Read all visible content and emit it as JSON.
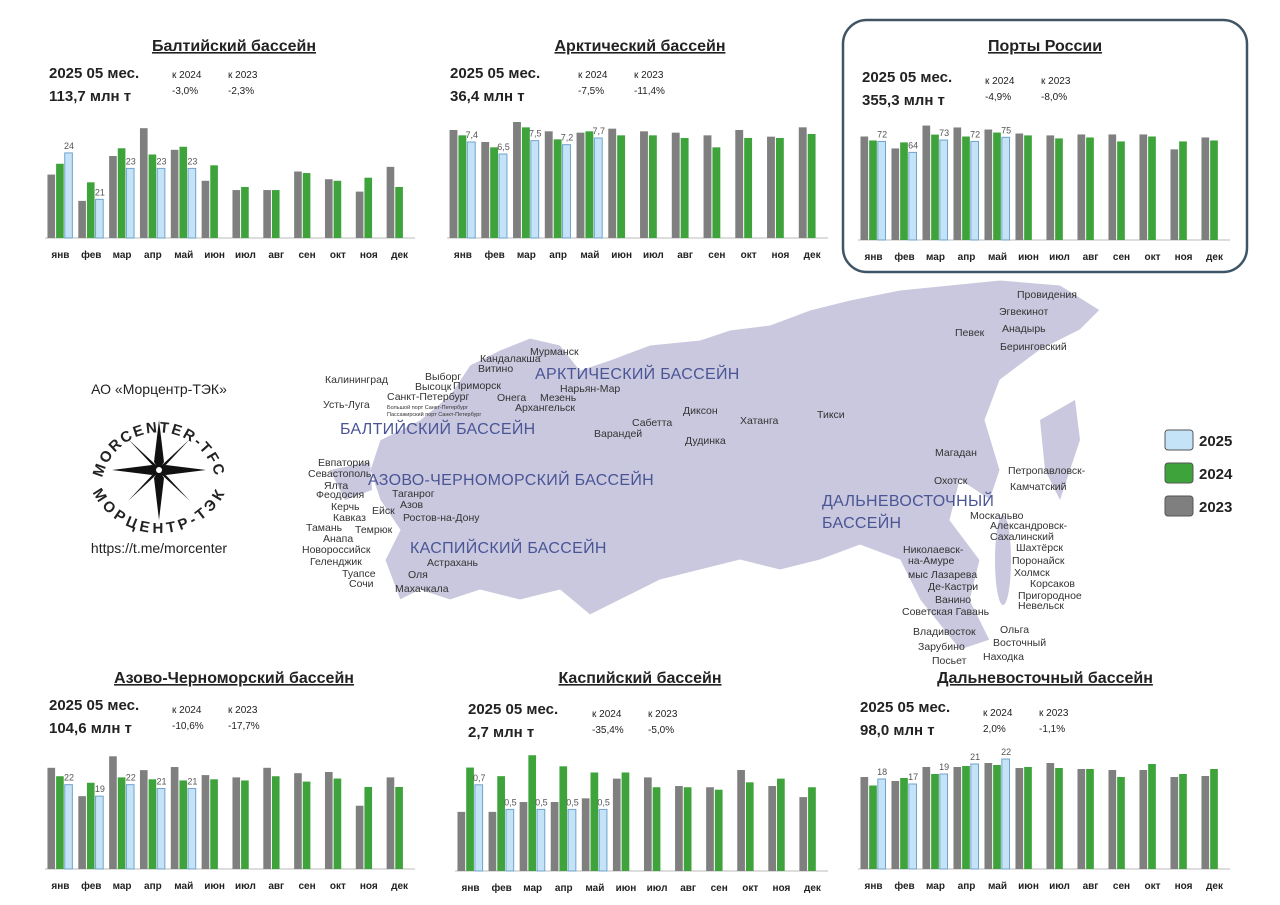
{
  "chart_data": [
    {
      "type": "bar",
      "title": "Балтийский бассейн",
      "period": "2025 05 мес.",
      "total": "113,7 млн т",
      "change_labels": [
        "к 2024",
        "к 2023"
      ],
      "changes": [
        "-3,0%",
        "-2,3%"
      ],
      "categories": [
        "янв",
        "фев",
        "мар",
        "апр",
        "май",
        "июн",
        "июл",
        "авг",
        "сен",
        "окт",
        "ноя",
        "дек"
      ],
      "ylim": [
        18.5,
        26
      ],
      "series": [
        {
          "name": "2023",
          "color": "#7f7f7f",
          "values": [
            22.6,
            20.9,
            23.8,
            25.6,
            24.2,
            22.2,
            21.6,
            21.6,
            22.8,
            22.3,
            21.5,
            23.1
          ]
        },
        {
          "name": "2024",
          "color": "#3ea33a",
          "values": [
            23.3,
            22.1,
            24.3,
            23.9,
            24.4,
            23.2,
            21.8,
            21.6,
            22.7,
            22.2,
            22.4,
            21.8
          ]
        },
        {
          "name": "2025",
          "color": "#c5e3f6",
          "values": [
            24,
            21,
            23,
            23,
            23,
            null,
            null,
            null,
            null,
            null,
            null,
            null
          ]
        }
      ]
    },
    {
      "type": "bar",
      "title": "Арктический бассейн",
      "period": "2025 05 мес.",
      "total": "36,4 млн т",
      "change_labels": [
        "к 2024",
        "к 2023"
      ],
      "changes": [
        "-7,5%",
        "-11,4%"
      ],
      "categories": [
        "янв",
        "фев",
        "мар",
        "апр",
        "май",
        "июн",
        "июл",
        "авг",
        "сен",
        "окт",
        "ноя",
        "дек"
      ],
      "ylim": [
        0.2,
        8.9
      ],
      "series": [
        {
          "name": "2023",
          "color": "#7f7f7f",
          "values": [
            8.3,
            7.4,
            8.9,
            8.2,
            8.1,
            8.4,
            8.2,
            8.1,
            7.9,
            8.3,
            7.8,
            8.5
          ]
        },
        {
          "name": "2024",
          "color": "#3ea33a",
          "values": [
            7.9,
            7.0,
            8.5,
            7.6,
            8.2,
            7.9,
            7.9,
            7.7,
            7.0,
            7.7,
            7.7,
            8.0
          ]
        },
        {
          "name": "2025",
          "color": "#c5e3f6",
          "values": [
            7.4,
            6.5,
            7.5,
            7.2,
            7.7,
            null,
            null,
            null,
            null,
            null,
            null,
            null
          ],
          "value_labels": [
            "7,4",
            "6,5",
            "7,5",
            "7,2",
            "7,7",
            null,
            null,
            null,
            null,
            null,
            null,
            null
          ]
        }
      ]
    },
    {
      "type": "bar",
      "title": "Порты России",
      "period": "2025 05 мес.",
      "total": "355,3 млн т",
      "change_labels": [
        "к 2024",
        "к 2023"
      ],
      "changes": [
        "-4,9%",
        "-8,0%"
      ],
      "categories": [
        "янв",
        "фев",
        "мар",
        "апр",
        "май",
        "июн",
        "июл",
        "авг",
        "сен",
        "окт",
        "ноя",
        "дек"
      ],
      "ylim": [
        0,
        84
      ],
      "series": [
        {
          "name": "2023",
          "color": "#7f7f7f",
          "values": [
            75.6,
            66.9,
            83.6,
            82.2,
            80.7,
            77.8,
            76.4,
            77.1,
            77.1,
            77.1,
            66.2,
            74.9
          ]
        },
        {
          "name": "2024",
          "color": "#3ea33a",
          "values": [
            72.7,
            71.3,
            77.0,
            75.6,
            78.5,
            76.4,
            74.2,
            74.9,
            72.0,
            75.6,
            72.0,
            72.7
          ]
        },
        {
          "name": "2025",
          "color": "#c5e3f6",
          "values": [
            72,
            64,
            73,
            72,
            75,
            null,
            null,
            null,
            null,
            null,
            null,
            null
          ]
        }
      ]
    },
    {
      "type": "bar",
      "title": "Азово-Черноморский бассейн",
      "period": "2025 05 мес.",
      "total": "104,6 млн т",
      "change_labels": [
        "к 2024",
        "к 2023"
      ],
      "changes": [
        "-10,6%",
        "-17,7%"
      ],
      "categories": [
        "янв",
        "фев",
        "мар",
        "апр",
        "май",
        "июн",
        "июл",
        "авг",
        "сен",
        "окт",
        "ноя",
        "дек"
      ],
      "ylim": [
        0,
        30
      ],
      "series": [
        {
          "name": "2023",
          "color": "#7f7f7f",
          "values": [
            26.4,
            19.0,
            29.4,
            25.8,
            26.6,
            24.5,
            23.9,
            26.4,
            25.0,
            25.3,
            16.5,
            23.9
          ]
        },
        {
          "name": "2024",
          "color": "#3ea33a",
          "values": [
            24.2,
            22.5,
            23.9,
            23.4,
            23.1,
            23.4,
            23.1,
            24.2,
            22.8,
            23.6,
            21.4,
            21.4
          ]
        },
        {
          "name": "2025",
          "color": "#c5e3f6",
          "values": [
            22,
            19,
            22,
            21,
            21,
            null,
            null,
            null,
            null,
            null,
            null,
            null
          ]
        }
      ]
    },
    {
      "type": "bar",
      "title": "Каспийский бассейн",
      "period": "2025 05 мес.",
      "total": "2,7 млн т",
      "change_labels": [
        "к 2024",
        "к 2023"
      ],
      "changes": [
        "-35,4%",
        "-5,0%"
      ],
      "categories": [
        "янв",
        "фев",
        "мар",
        "апр",
        "май",
        "июн",
        "июл",
        "авг",
        "сен",
        "окт",
        "ноя",
        "дек"
      ],
      "ylim": [
        0,
        0.95
      ],
      "series": [
        {
          "name": "2023",
          "color": "#7f7f7f",
          "values": [
            0.48,
            0.48,
            0.56,
            0.56,
            0.59,
            0.75,
            0.76,
            0.69,
            0.68,
            0.82,
            0.69,
            0.6
          ]
        },
        {
          "name": "2024",
          "color": "#3ea33a",
          "values": [
            0.84,
            0.77,
            0.94,
            0.85,
            0.8,
            0.8,
            0.68,
            0.68,
            0.66,
            0.72,
            0.75,
            0.68
          ]
        },
        {
          "name": "2025",
          "color": "#c5e3f6",
          "values": [
            0.7,
            0.5,
            0.5,
            0.5,
            0.5,
            null,
            null,
            null,
            null,
            null,
            null,
            null
          ],
          "value_labels": [
            "0,7",
            "0,5",
            "0,5",
            "0,5",
            "0,5",
            null,
            null,
            null,
            null,
            null,
            null,
            null
          ]
        }
      ]
    },
    {
      "type": "bar",
      "title": "Дальневосточный бассейн",
      "period": "2025 05 мес.",
      "total": "98,0 млн т",
      "change_labels": [
        "к 2024",
        "к 2023"
      ],
      "changes": [
        "2,0%",
        "-1,1%"
      ],
      "categories": [
        "янв",
        "фев",
        "мар",
        "апр",
        "май",
        "июн",
        "июл",
        "авг",
        "сен",
        "окт",
        "ноя",
        "дек"
      ],
      "ylim": [
        0,
        23
      ],
      "series": [
        {
          "name": "2023",
          "color": "#7f7f7f",
          "values": [
            18.4,
            17.6,
            20.4,
            20.4,
            21.2,
            20.2,
            21.2,
            20.0,
            19.8,
            19.8,
            18.4,
            18.6
          ]
        },
        {
          "name": "2024",
          "color": "#3ea33a",
          "values": [
            16.7,
            18.2,
            19.0,
            20.6,
            20.8,
            20.4,
            20.2,
            20.0,
            18.4,
            21.0,
            19.0,
            20.0
          ]
        },
        {
          "name": "2025",
          "color": "#c5e3f6",
          "values": [
            18,
            17,
            19,
            21,
            22,
            null,
            null,
            null,
            null,
            null,
            null,
            null
          ]
        }
      ]
    }
  ],
  "map": {
    "basins": [
      "АРКТИЧЕСКИЙ БАССЕЙН",
      "БАЛТИЙСКИЙ БАССЕЙН",
      "АЗОВО-ЧЕРНОМОРСКИЙ БАССЕЙН",
      "КАСПИЙСКИЙ БАССЕЙН",
      "ДАЛЬНЕВОСТОЧНЫЙ",
      "БАССЕЙН"
    ],
    "ports": [
      "Мурманск",
      "Кандалакша",
      "Витино",
      "Калининград",
      "Выборг",
      "Приморск",
      "Высоцк",
      "Санкт-Петербург",
      "Большой порт Санкт-Петербург",
      "Пассажирский порт Санкт-Петербург",
      "Усть-Луга",
      "Онега",
      "Мезень",
      "Нарьян-Мар",
      "Архангельск",
      "Сабетта",
      "Варандей",
      "Диксон",
      "Дудинка",
      "Хатанга",
      "Тикси",
      "Певек",
      "Провидения",
      "Эгвекинот",
      "Анадырь",
      "Беринговский",
      "Магадан",
      "Охотск",
      "Петропавловск-",
      "Камчатский",
      "Москальво",
      "Александровск-",
      "Сахалинский",
      "Шахтёрск",
      "Поронайск",
      "Холмск",
      "Корсаков",
      "Пригородное",
      "Невельск",
      "Николаевск-",
      "на-Амуре",
      "мыс Лазарева",
      "Де-Кастри",
      "Ванино",
      "Советская Гавань",
      "Владивосток",
      "Ольга",
      "Зарубино",
      "Восточный",
      "Посьет",
      "Находка",
      "Евпатория",
      "Севастополь",
      "Ялта",
      "Феодосия",
      "Керчь",
      "Кавказ",
      "Тамань",
      "Анапа",
      "Новороссийск",
      "Геленджик",
      "Туапсе",
      "Сочи",
      "Таганрог",
      "Азов",
      "Ейск",
      "Темрюк",
      "Ростов-на-Дону",
      "Астрахань",
      "Оля",
      "Махачкала"
    ]
  },
  "logo": {
    "company": "АО «Морцентр-ТЭК»",
    "ring_top": "MORCENTER-TFC",
    "ring_bottom": "МОРЦЕНТР-ТЭК",
    "url": "https://t.me/morcenter"
  }
}
